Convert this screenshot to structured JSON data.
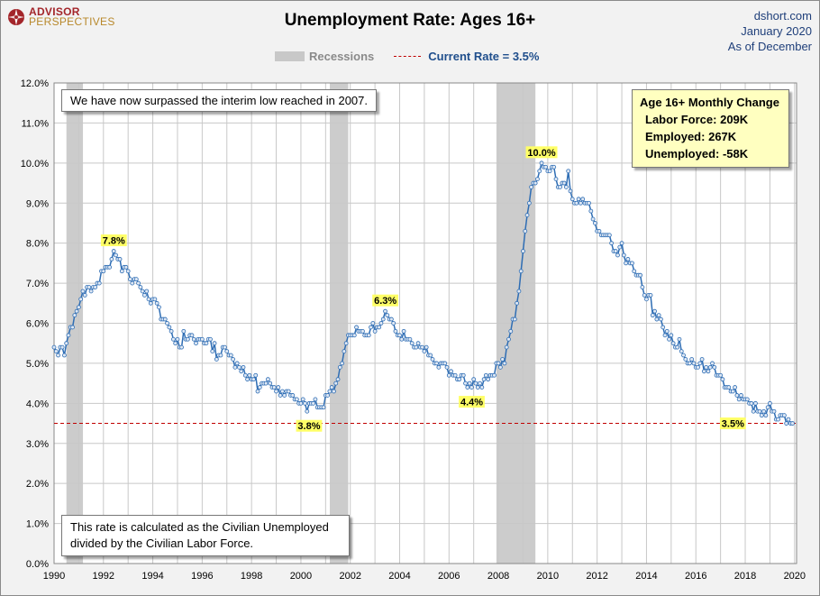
{
  "header": {
    "logo_line1": "ADVISOR",
    "logo_line2": "PERSPECTIVES",
    "title": "Unemployment Rate: Ages 16+",
    "source_site": "dshort.com",
    "source_date": "January 2020",
    "source_asof": "As of December"
  },
  "legend": {
    "recessions_label": "Recessions",
    "current_rate_label": "Current Rate = 3.5%"
  },
  "annotations": {
    "top_note": "We have now surpassed the interim low reached in 2007.",
    "bottom_note_line1": "This rate is calculated as the Civilian Unemployed",
    "bottom_note_line2": "divided by the Civilian Labor Force."
  },
  "monthly_change": {
    "title": "Age 16+ Monthly Change",
    "rows": [
      {
        "label": "Labor Force:",
        "value": "209K"
      },
      {
        "label": "Employed:",
        "value": "267K"
      },
      {
        "label": "Unemployed:",
        "value": "-58K"
      }
    ]
  },
  "colors": {
    "line": "#2e6db4",
    "marker_fill": "#dfe8f4",
    "recession": "#cccccc",
    "current_rate": "#c00000",
    "label_highlight": "#ffff66"
  },
  "chart_data": {
    "type": "line",
    "title": "Unemployment Rate: Ages 16+",
    "xlabel": "",
    "ylabel": "",
    "xlim": [
      1990,
      2020.08
    ],
    "ylim": [
      0,
      12
    ],
    "yticks": [
      0,
      1,
      2,
      3,
      4,
      5,
      6,
      7,
      8,
      9,
      10,
      11,
      12
    ],
    "ytick_labels": [
      "0.0%",
      "1.0%",
      "2.0%",
      "3.0%",
      "4.0%",
      "5.0%",
      "6.0%",
      "7.0%",
      "8.0%",
      "9.0%",
      "10.0%",
      "11.0%",
      "12.0%"
    ],
    "xticks": [
      1990,
      1992,
      1994,
      1996,
      1998,
      2000,
      2002,
      2004,
      2006,
      2008,
      2010,
      2012,
      2014,
      2016,
      2018,
      2020
    ],
    "xtick_labels": [
      "1990",
      "1992",
      "1994",
      "1996",
      "1998",
      "2000",
      "2002",
      "2004",
      "2006",
      "2008",
      "2010",
      "2012",
      "2014",
      "2016",
      "2018",
      "2020"
    ],
    "grid": true,
    "recessions": [
      [
        1990.5,
        1991.17
      ],
      [
        2001.17,
        2001.92
      ],
      [
        2007.92,
        2009.5
      ]
    ],
    "current_rate": 3.5,
    "series": [
      {
        "name": "Unemployment Rate",
        "start": "1990-01",
        "frequency": "monthly",
        "values": [
          5.4,
          5.3,
          5.2,
          5.4,
          5.4,
          5.2,
          5.5,
          5.7,
          5.9,
          5.9,
          6.2,
          6.3,
          6.4,
          6.6,
          6.8,
          6.7,
          6.9,
          6.9,
          6.8,
          6.9,
          6.9,
          7.0,
          7.0,
          7.3,
          7.3,
          7.4,
          7.4,
          7.4,
          7.6,
          7.8,
          7.7,
          7.6,
          7.6,
          7.3,
          7.4,
          7.4,
          7.3,
          7.1,
          7.0,
          7.1,
          7.1,
          7.0,
          6.9,
          6.8,
          6.7,
          6.8,
          6.6,
          6.5,
          6.6,
          6.6,
          6.5,
          6.4,
          6.1,
          6.1,
          6.1,
          6.0,
          5.9,
          5.8,
          5.6,
          5.5,
          5.6,
          5.4,
          5.4,
          5.8,
          5.6,
          5.6,
          5.7,
          5.7,
          5.6,
          5.5,
          5.6,
          5.6,
          5.6,
          5.5,
          5.5,
          5.6,
          5.6,
          5.3,
          5.5,
          5.1,
          5.2,
          5.2,
          5.4,
          5.4,
          5.3,
          5.2,
          5.2,
          5.1,
          4.9,
          5.0,
          4.9,
          4.8,
          4.9,
          4.7,
          4.6,
          4.7,
          4.6,
          4.6,
          4.7,
          4.3,
          4.4,
          4.5,
          4.5,
          4.5,
          4.6,
          4.5,
          4.4,
          4.4,
          4.3,
          4.4,
          4.2,
          4.3,
          4.2,
          4.3,
          4.3,
          4.2,
          4.2,
          4.1,
          4.1,
          4.0,
          4.0,
          4.1,
          4.0,
          3.8,
          4.0,
          4.0,
          4.0,
          4.1,
          3.9,
          3.9,
          3.9,
          3.9,
          4.2,
          4.2,
          4.3,
          4.4,
          4.3,
          4.5,
          4.6,
          4.9,
          5.0,
          5.3,
          5.5,
          5.7,
          5.7,
          5.7,
          5.7,
          5.9,
          5.8,
          5.8,
          5.8,
          5.7,
          5.7,
          5.7,
          5.9,
          6.0,
          5.8,
          5.9,
          5.9,
          6.0,
          6.1,
          6.3,
          6.2,
          6.1,
          6.1,
          6.0,
          5.8,
          5.7,
          5.7,
          5.6,
          5.8,
          5.6,
          5.6,
          5.6,
          5.5,
          5.4,
          5.4,
          5.5,
          5.4,
          5.4,
          5.3,
          5.4,
          5.2,
          5.2,
          5.1,
          5.0,
          5.0,
          4.9,
          5.0,
          5.0,
          5.0,
          4.9,
          4.7,
          4.8,
          4.7,
          4.7,
          4.6,
          4.6,
          4.7,
          4.7,
          4.5,
          4.4,
          4.5,
          4.4,
          4.6,
          4.5,
          4.4,
          4.5,
          4.4,
          4.6,
          4.7,
          4.6,
          4.7,
          4.7,
          4.7,
          5.0,
          5.0,
          4.9,
          5.1,
          5.0,
          5.4,
          5.6,
          5.8,
          6.1,
          6.1,
          6.5,
          6.8,
          7.3,
          7.8,
          8.3,
          8.7,
          9.0,
          9.4,
          9.5,
          9.5,
          9.6,
          9.8,
          10.0,
          9.9,
          9.9,
          9.8,
          9.8,
          9.9,
          9.9,
          9.6,
          9.4,
          9.4,
          9.5,
          9.5,
          9.4,
          9.8,
          9.3,
          9.1,
          9.0,
          9.0,
          9.1,
          9.0,
          9.1,
          9.0,
          9.0,
          9.0,
          8.8,
          8.6,
          8.5,
          8.3,
          8.3,
          8.2,
          8.2,
          8.2,
          8.2,
          8.2,
          8.0,
          7.8,
          7.8,
          7.7,
          7.9,
          8.0,
          7.7,
          7.5,
          7.6,
          7.5,
          7.5,
          7.3,
          7.2,
          7.2,
          7.2,
          6.9,
          6.7,
          6.6,
          6.7,
          6.7,
          6.2,
          6.3,
          6.1,
          6.2,
          6.1,
          5.9,
          5.7,
          5.8,
          5.6,
          5.7,
          5.5,
          5.4,
          5.4,
          5.6,
          5.3,
          5.2,
          5.1,
          5.0,
          5.0,
          5.1,
          5.0,
          4.9,
          4.9,
          5.0,
          5.1,
          4.8,
          4.9,
          4.8,
          4.9,
          5.0,
          4.9,
          4.7,
          4.7,
          4.7,
          4.6,
          4.4,
          4.4,
          4.4,
          4.3,
          4.3,
          4.4,
          4.2,
          4.1,
          4.2,
          4.1,
          4.1,
          4.1,
          4.0,
          4.0,
          3.8,
          4.0,
          3.8,
          3.8,
          3.7,
          3.8,
          3.7,
          3.9,
          4.0,
          3.8,
          3.8,
          3.6,
          3.6,
          3.7,
          3.7,
          3.7,
          3.5,
          3.6,
          3.5,
          3.5
        ]
      }
    ],
    "point_labels": [
      {
        "x": 1992.42,
        "y": 7.8,
        "text": "7.8%",
        "pos": "above"
      },
      {
        "x": 2000.33,
        "y": 3.8,
        "text": "3.8%",
        "pos": "below"
      },
      {
        "x": 2003.42,
        "y": 6.3,
        "text": "6.3%",
        "pos": "above"
      },
      {
        "x": 2006.92,
        "y": 4.4,
        "text": "4.4%",
        "pos": "below"
      },
      {
        "x": 2009.75,
        "y": 10.0,
        "text": "10.0%",
        "pos": "above"
      },
      {
        "x": 2017.5,
        "y": 3.5,
        "text": "3.5%",
        "pos": "on"
      }
    ]
  }
}
